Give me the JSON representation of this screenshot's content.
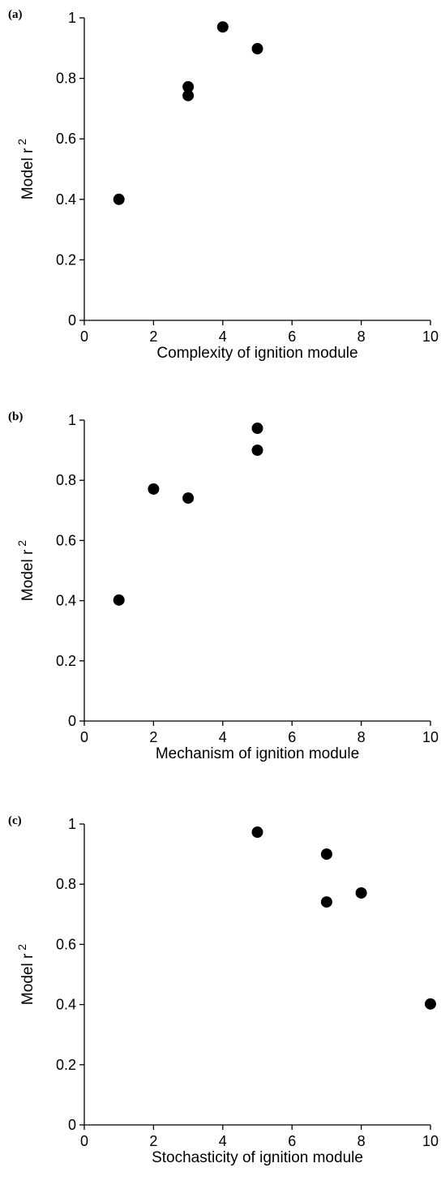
{
  "chart_data": [
    {
      "type": "scatter",
      "panel_label": "(a)",
      "xlabel": "Complexity of ignition module",
      "ylabel": "Model r",
      "ylabel_superscript": "2",
      "x": [
        1,
        3,
        3,
        4,
        5
      ],
      "values": [
        0.4,
        0.772,
        0.743,
        0.97,
        0.898
      ],
      "color": "#000000",
      "xlim": [
        0,
        10
      ],
      "xticks": [
        0,
        2,
        4,
        6,
        8,
        10
      ],
      "ylim": [
        0,
        1
      ],
      "yticks": [
        0,
        0.2,
        0.4,
        0.6,
        0.8,
        1
      ]
    },
    {
      "type": "scatter",
      "panel_label": "(b)",
      "xlabel": "Mechanism of ignition module",
      "ylabel": "Model r",
      "ylabel_superscript": "2",
      "x": [
        1,
        2,
        3,
        5,
        5
      ],
      "values": [
        0.402,
        0.771,
        0.741,
        0.973,
        0.9
      ],
      "color": "#000000",
      "xlim": [
        0,
        10
      ],
      "xticks": [
        0,
        2,
        4,
        6,
        8,
        10
      ],
      "ylim": [
        0,
        1
      ],
      "yticks": [
        0,
        0.2,
        0.4,
        0.6,
        0.8,
        1
      ]
    },
    {
      "type": "scatter",
      "panel_label": "(c)",
      "xlabel": "Stochasticity of ignition module",
      "ylabel": "Model r",
      "ylabel_superscript": "2",
      "x": [
        5,
        7,
        7,
        8,
        10
      ],
      "values": [
        0.973,
        0.9,
        0.741,
        0.771,
        0.402
      ],
      "color": "#000000",
      "xlim": [
        0,
        10
      ],
      "xticks": [
        0,
        2,
        4,
        6,
        8,
        10
      ],
      "ylim": [
        0,
        1
      ],
      "yticks": [
        0,
        0.2,
        0.4,
        0.6,
        0.8,
        1
      ]
    }
  ]
}
